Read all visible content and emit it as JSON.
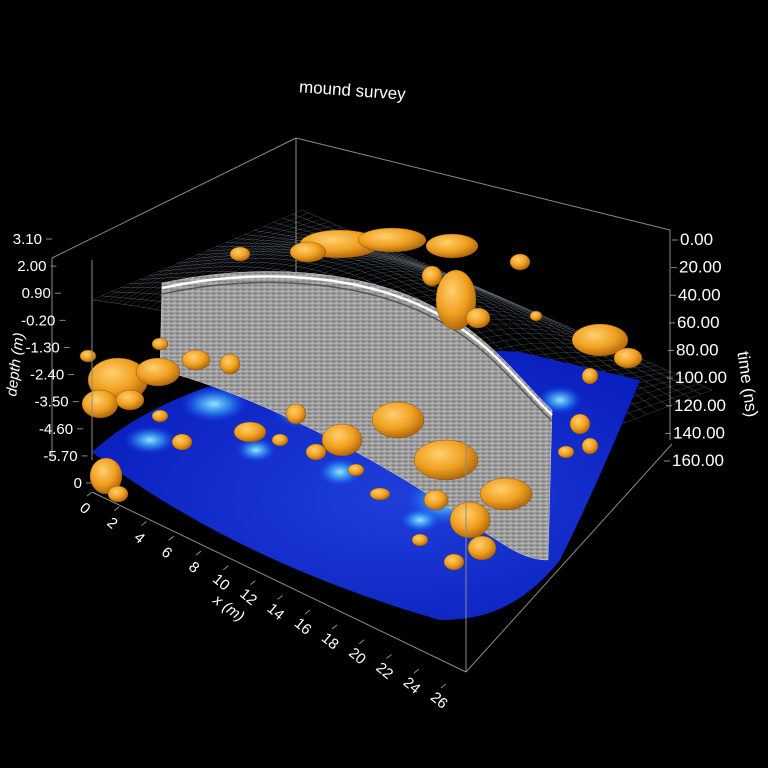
{
  "chart_data": {
    "type": "3d-volume",
    "title": "mound survey",
    "axes": {
      "x": {
        "label": "x (m)",
        "ticks": [
          "0",
          "2",
          "4",
          "6",
          "8",
          "10",
          "12",
          "14",
          "16",
          "18",
          "20",
          "22",
          "24",
          "26"
        ],
        "range": [
          0,
          26
        ]
      },
      "depth": {
        "label": "depth (m)",
        "ticks": [
          "3.10",
          "2.00",
          "0.90",
          "-0.20",
          "-1.30",
          "-2.40",
          "-3.50",
          "-4.60",
          "-5.70",
          "0"
        ],
        "range": [
          -5.7,
          3.1
        ]
      },
      "time": {
        "label": "time (ns)",
        "ticks": [
          "0.00",
          "20.00",
          "40.00",
          "60.00",
          "80.00",
          "100.00",
          "120.00",
          "140.00",
          "160.00"
        ],
        "range": [
          0,
          160
        ]
      }
    },
    "layers": [
      "topographic surface mesh",
      "vertical radargram section",
      "depth slice",
      "reflector isosurfaces"
    ],
    "colors": {
      "background": "#000000",
      "box": "#8a8a8a",
      "isosurface": "#f0a020",
      "slice_low": "#0a1fbf",
      "slice_high": "#7fe9ff",
      "radargram": "#9a9a9a",
      "mesh": "#cfe9ff"
    }
  }
}
